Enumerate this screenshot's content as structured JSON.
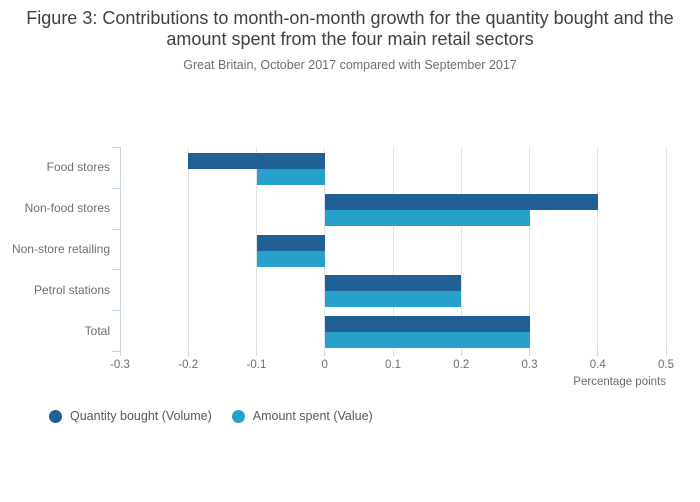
{
  "figure": {
    "title": "Figure 3: Contributions to month-on-month growth for the quantity bought and the amount spent from the four main retail sectors",
    "subtitle": "Great Britain, October 2017 compared with September 2017"
  },
  "chart_data": {
    "type": "bar",
    "orientation": "horizontal",
    "title": "Figure 3: Contributions to month-on-month growth for the quantity bought and the amount spent from the four main retail sectors",
    "subtitle": "Great Britain, October 2017 compared with September 2017",
    "categories": [
      "Food stores",
      "Non-food stores",
      "Non-store retailing",
      "Petrol stations",
      "Total"
    ],
    "series": [
      {
        "name": "Quantity bought (Volume)",
        "color": "#206095",
        "values": [
          -0.2,
          0.4,
          -0.1,
          0.2,
          0.3
        ]
      },
      {
        "name": "Amount spent (Value)",
        "color": "#27A0CC",
        "values": [
          -0.1,
          0.3,
          -0.1,
          0.2,
          0.3
        ]
      }
    ],
    "xlabel": "Percentage points",
    "ylabel": "",
    "xlim": [
      -0.3,
      0.5
    ],
    "x_ticks": [
      -0.3,
      -0.2,
      -0.1,
      0,
      0.1,
      0.2,
      0.3,
      0.4,
      0.5
    ],
    "grid": true,
    "legend_position": "bottom-left"
  },
  "colors": {
    "title_text": "#414042",
    "subtitle_text": "#6d6e71",
    "axis_line": "#c7d3e1",
    "gridline": "#e2e2e2",
    "tick_label_text": "#6d6e71",
    "legend_text": "#58595b"
  }
}
